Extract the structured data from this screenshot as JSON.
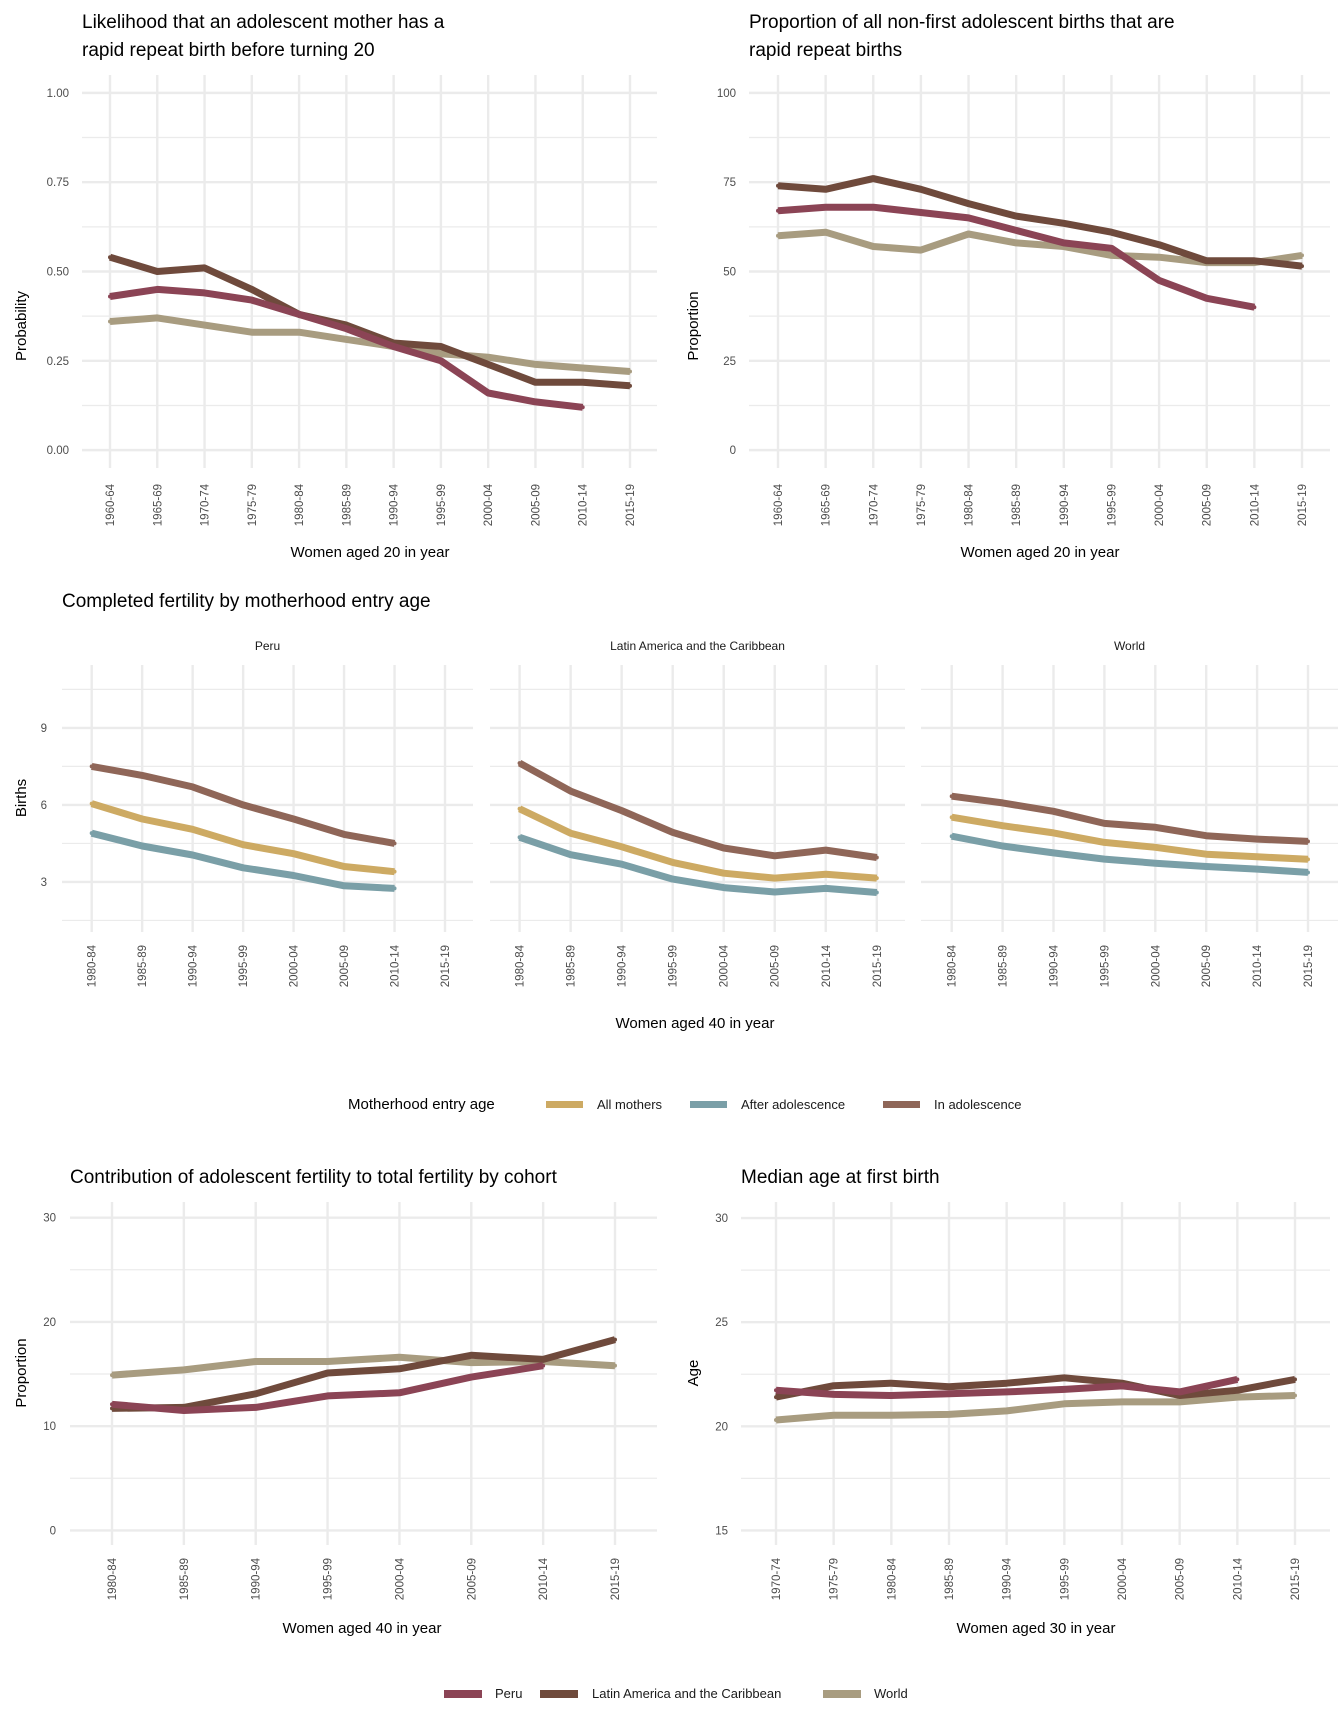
{
  "chart_data": [
    {
      "type": "line",
      "title": [
        "Likelihood that an adolescent mother has a",
        "rapid repeat birth before turning 20"
      ],
      "xlabel": "Women aged 20 in year",
      "ylabel": "Probability",
      "categories": [
        "1960-64",
        "1965-69",
        "1970-74",
        "1975-79",
        "1980-84",
        "1985-89",
        "1990-94",
        "1995-99",
        "2000-04",
        "2005-09",
        "2010-14",
        "2015-19"
      ],
      "yticks": [
        0,
        0.25,
        0.5,
        0.75,
        1.0
      ],
      "ytick_labels": [
        "0.00",
        "0.25",
        "0.50",
        "0.75",
        "1.00"
      ],
      "ylim": [
        -0.05,
        1.05
      ],
      "grid": true,
      "series": [
        {
          "name": "World",
          "color": "#A89C80",
          "values": [
            0.36,
            0.37,
            0.35,
            0.33,
            0.33,
            0.31,
            0.29,
            0.27,
            0.26,
            0.24,
            0.23,
            0.22
          ]
        },
        {
          "name": "Latin America and the Caribbean",
          "color": "#6F4A3C",
          "values": [
            0.54,
            0.5,
            0.51,
            0.45,
            0.38,
            0.35,
            0.3,
            0.29,
            0.24,
            0.19,
            0.19,
            0.18
          ]
        },
        {
          "name": "Peru",
          "color": "#8B4455",
          "values": [
            0.43,
            0.45,
            0.44,
            0.42,
            0.38,
            0.34,
            0.29,
            0.25,
            0.16,
            0.135,
            0.12,
            null
          ]
        }
      ]
    },
    {
      "type": "line",
      "title": [
        "Proportion of all non-first adolescent births that are",
        "rapid repeat births"
      ],
      "xlabel": "Women aged 20 in year",
      "ylabel": "Proportion",
      "categories": [
        "1960-64",
        "1965-69",
        "1970-74",
        "1975-79",
        "1980-84",
        "1985-89",
        "1990-94",
        "1995-99",
        "2000-04",
        "2005-09",
        "2010-14",
        "2015-19"
      ],
      "yticks": [
        0,
        25,
        50,
        75,
        100
      ],
      "ytick_labels": [
        "0",
        "25",
        "50",
        "75",
        "100"
      ],
      "ylim": [
        -5,
        105
      ],
      "grid": true,
      "series": [
        {
          "name": "World",
          "color": "#A89C80",
          "values": [
            60,
            61,
            57,
            56,
            60.5,
            58,
            57,
            54.5,
            54,
            52.5,
            52.5,
            54.5
          ]
        },
        {
          "name": "Latin America and the Caribbean",
          "color": "#6F4A3C",
          "values": [
            74,
            73,
            76,
            73,
            69,
            65.5,
            63.5,
            61,
            57.5,
            53,
            53,
            51.5
          ]
        },
        {
          "name": "Peru",
          "color": "#8B4455",
          "values": [
            67,
            68,
            68,
            66.5,
            65,
            61.5,
            58,
            56.5,
            47.5,
            42.5,
            40,
            null
          ]
        }
      ]
    },
    {
      "type": "line",
      "title": [
        "Completed fertility by motherhood entry age"
      ],
      "xlabel": "Women aged 40 in year",
      "ylabel": "Births",
      "categories": [
        "1980-84",
        "1985-89",
        "1990-94",
        "1995-99",
        "2000-04",
        "2005-09",
        "2010-14",
        "2015-19"
      ],
      "yticks": [
        3,
        6,
        9
      ],
      "ytick_labels": [
        "3",
        "6",
        "9"
      ],
      "ylim": [
        1.05,
        11.45
      ],
      "grid": true,
      "legend": {
        "title": "Motherhood entry age",
        "placement": "bottom"
      },
      "facets": [
        {
          "name": "Peru",
          "series": [
            {
              "name": "In adolescence",
              "color": "#8F6658",
              "values": [
                7.5,
                7.15,
                6.7,
                6.0,
                5.45,
                4.85,
                4.5,
                null
              ]
            },
            {
              "name": "All mothers",
              "color": "#CDAA63",
              "values": [
                6.05,
                5.45,
                5.05,
                4.45,
                4.1,
                3.6,
                3.4,
                null
              ]
            },
            {
              "name": "After adolescence",
              "color": "#7A9FA7",
              "values": [
                4.9,
                4.4,
                4.05,
                3.55,
                3.25,
                2.85,
                2.75,
                null
              ]
            }
          ]
        },
        {
          "name": "Latin America and the Caribbean",
          "series": [
            {
              "name": "In adolescence",
              "color": "#8F6658",
              "values": [
                7.63,
                6.54,
                5.78,
                4.93,
                4.32,
                4.02,
                4.24,
                3.95
              ]
            },
            {
              "name": "All mothers",
              "color": "#CDAA63",
              "values": [
                5.85,
                4.9,
                4.37,
                3.76,
                3.34,
                3.15,
                3.3,
                3.15
              ]
            },
            {
              "name": "After adolescence",
              "color": "#7A9FA7",
              "values": [
                4.74,
                4.06,
                3.69,
                3.11,
                2.78,
                2.61,
                2.75,
                2.59
              ]
            }
          ]
        },
        {
          "name": "World",
          "series": [
            {
              "name": "In adolescence",
              "color": "#8F6658",
              "values": [
                6.34,
                6.08,
                5.75,
                5.28,
                5.13,
                4.8,
                4.67,
                4.58
              ]
            },
            {
              "name": "All mothers",
              "color": "#CDAA63",
              "values": [
                5.52,
                5.19,
                4.91,
                4.54,
                4.35,
                4.08,
                3.98,
                3.88
              ]
            },
            {
              "name": "After adolescence",
              "color": "#7A9FA7",
              "values": [
                4.78,
                4.4,
                4.13,
                3.89,
                3.73,
                3.6,
                3.5,
                3.37
              ]
            }
          ]
        }
      ],
      "legend_items": [
        {
          "name": "All mothers",
          "color": "#CDAA63"
        },
        {
          "name": "After adolescence",
          "color": "#7A9FA7"
        },
        {
          "name": "In adolescence",
          "color": "#8F6658"
        }
      ]
    },
    {
      "type": "line",
      "title": [
        "Contribution of adolescent fertility to total fertility by cohort"
      ],
      "xlabel": "Women aged 40 in year",
      "ylabel": "Proportion",
      "categories": [
        "1980-84",
        "1985-89",
        "1990-94",
        "1995-99",
        "2000-04",
        "2005-09",
        "2010-14",
        "2015-19"
      ],
      "yticks": [
        0,
        10,
        20,
        30
      ],
      "ytick_labels": [
        "0",
        "10",
        "20",
        "30"
      ],
      "ylim": [
        -1.4,
        31.5
      ],
      "grid": true,
      "series": [
        {
          "name": "World",
          "color": "#A89C80",
          "values": [
            14.9,
            15.4,
            16.2,
            16.2,
            16.6,
            16.1,
            16.2,
            15.8
          ]
        },
        {
          "name": "Latin America and the Caribbean",
          "color": "#6F4A3C",
          "values": [
            11.7,
            11.8,
            13.1,
            15.1,
            15.5,
            16.8,
            16.4,
            18.3
          ]
        },
        {
          "name": "Peru",
          "color": "#8B4455",
          "values": [
            12.1,
            11.5,
            11.8,
            12.9,
            13.2,
            14.7,
            15.8,
            null
          ]
        }
      ]
    },
    {
      "type": "line",
      "title": [
        "Median age at first birth"
      ],
      "xlabel": "Women aged 30 in year",
      "ylabel": "Age",
      "categories": [
        "1970-74",
        "1975-79",
        "1980-84",
        "1985-89",
        "1990-94",
        "1995-99",
        "2000-04",
        "2005-09",
        "2010-14",
        "2015-19"
      ],
      "yticks": [
        15,
        20,
        25,
        30
      ],
      "ytick_labels": [
        "15",
        "20",
        "25",
        "30"
      ],
      "ylim": [
        14.3,
        30.77
      ],
      "grid": true,
      "series": [
        {
          "name": "World",
          "color": "#A89C80",
          "values": [
            20.3,
            20.53,
            20.53,
            20.57,
            20.74,
            21.08,
            21.17,
            21.17,
            21.4,
            21.48
          ]
        },
        {
          "name": "Latin America and the Caribbean",
          "color": "#6F4A3C",
          "values": [
            21.4,
            21.95,
            22.07,
            21.9,
            22.07,
            22.33,
            22.07,
            21.48,
            21.73,
            22.25
          ]
        },
        {
          "name": "Peru",
          "color": "#8B4455",
          "values": [
            21.73,
            21.53,
            21.48,
            21.56,
            21.65,
            21.77,
            21.94,
            21.65,
            22.25,
            null
          ]
        }
      ]
    }
  ],
  "region_legend": {
    "placement": "bottom",
    "items": [
      {
        "name": "Peru",
        "color": "#8B4455"
      },
      {
        "name": "Latin America and the Caribbean",
        "color": "#6F4A3C"
      },
      {
        "name": "World",
        "color": "#A89C80"
      }
    ]
  }
}
